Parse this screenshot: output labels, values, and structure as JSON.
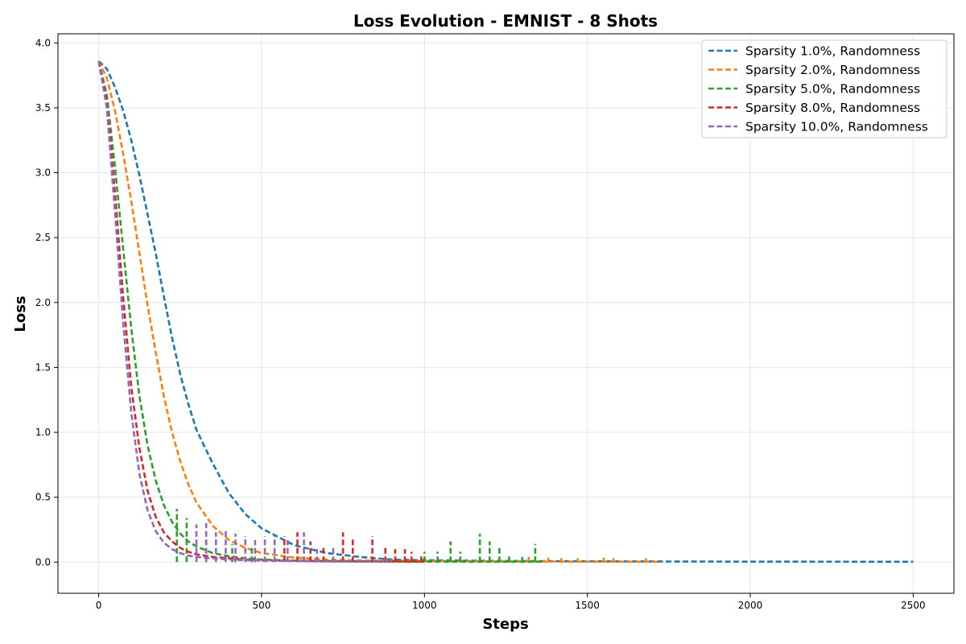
{
  "chart_data": {
    "type": "line",
    "title": "Loss Evolution - EMNIST - 8 Shots",
    "xlabel": "Steps",
    "ylabel": "Loss",
    "xlim": [
      -125,
      2625
    ],
    "ylim": [
      -0.24,
      4.07
    ],
    "xticks": [
      0,
      500,
      1000,
      1500,
      2000,
      2500
    ],
    "yticks": [
      0.0,
      0.5,
      1.0,
      1.5,
      2.0,
      2.5,
      3.0,
      3.5,
      4.0
    ],
    "xtick_labels": [
      "0",
      "500",
      "1000",
      "1500",
      "2000",
      "2500"
    ],
    "ytick_labels": [
      "0.0",
      "0.5",
      "1.0",
      "1.5",
      "2.0",
      "2.5",
      "3.0",
      "3.5",
      "4.0"
    ],
    "grid": true,
    "legend_position": "top-right",
    "series": [
      {
        "name": "Sparsity 1.0%, Randomness",
        "color": "#1f77b4",
        "x": [
          0,
          25,
          50,
          75,
          100,
          125,
          150,
          175,
          200,
          225,
          250,
          275,
          300,
          350,
          400,
          450,
          500,
          600,
          700,
          800,
          900,
          1000,
          1200,
          1500,
          2000,
          2500
        ],
        "y": [
          3.86,
          3.8,
          3.66,
          3.48,
          3.25,
          2.98,
          2.68,
          2.38,
          2.05,
          1.73,
          1.45,
          1.22,
          1.02,
          0.76,
          0.53,
          0.37,
          0.26,
          0.13,
          0.07,
          0.04,
          0.02,
          0.015,
          0.01,
          0.006,
          0.004,
          0.003
        ],
        "spikes": []
      },
      {
        "name": "Sparsity 2.0%, Randomness",
        "color": "#ff7f0e",
        "x": [
          0,
          25,
          50,
          75,
          100,
          125,
          150,
          175,
          200,
          225,
          250,
          275,
          300,
          350,
          400,
          450,
          500,
          600,
          700,
          800,
          1000,
          1200,
          1500,
          1720
        ],
        "y": [
          3.86,
          3.73,
          3.48,
          3.15,
          2.78,
          2.38,
          1.98,
          1.62,
          1.28,
          1.0,
          0.78,
          0.6,
          0.46,
          0.28,
          0.17,
          0.11,
          0.07,
          0.035,
          0.02,
          0.013,
          0.008,
          0.005,
          0.004,
          0.003
        ],
        "spikes": [
          [
            1320,
            0.04
          ],
          [
            1380,
            0.035
          ],
          [
            1420,
            0.03
          ],
          [
            1470,
            0.03
          ],
          [
            1550,
            0.035
          ],
          [
            1580,
            0.03
          ],
          [
            1680,
            0.03
          ]
        ]
      },
      {
        "name": "Sparsity 5.0%, Randomness",
        "color": "#2ca02c",
        "x": [
          0,
          25,
          50,
          75,
          100,
          125,
          150,
          175,
          200,
          225,
          250,
          275,
          300,
          350,
          400,
          450,
          500,
          600,
          700,
          800,
          1000,
          1200,
          1360
        ],
        "y": [
          3.86,
          3.6,
          3.05,
          2.42,
          1.8,
          1.28,
          0.9,
          0.63,
          0.44,
          0.31,
          0.22,
          0.16,
          0.12,
          0.07,
          0.045,
          0.03,
          0.02,
          0.012,
          0.008,
          0.006,
          0.004,
          0.003,
          0.003
        ],
        "spikes": [
          [
            240,
            0.41
          ],
          [
            270,
            0.34
          ],
          [
            330,
            0.2
          ],
          [
            410,
            0.14
          ],
          [
            470,
            0.11
          ],
          [
            1000,
            0.08
          ],
          [
            1040,
            0.08
          ],
          [
            1080,
            0.16
          ],
          [
            1110,
            0.08
          ],
          [
            1170,
            0.22
          ],
          [
            1200,
            0.16
          ],
          [
            1230,
            0.12
          ],
          [
            1260,
            0.06
          ],
          [
            1300,
            0.04
          ],
          [
            1340,
            0.14
          ]
        ]
      },
      {
        "name": "Sparsity 8.0%, Randomness",
        "color": "#d62728",
        "x": [
          0,
          25,
          50,
          75,
          100,
          125,
          150,
          175,
          200,
          225,
          250,
          275,
          300,
          350,
          400,
          450,
          500,
          600,
          700,
          800,
          1000
        ],
        "y": [
          3.86,
          3.55,
          2.85,
          2.05,
          1.35,
          0.88,
          0.55,
          0.35,
          0.23,
          0.16,
          0.11,
          0.08,
          0.06,
          0.04,
          0.03,
          0.02,
          0.015,
          0.01,
          0.007,
          0.005,
          0.004
        ],
        "spikes": [
          [
            570,
            0.2
          ],
          [
            610,
            0.23
          ],
          [
            650,
            0.16
          ],
          [
            690,
            0.11
          ],
          [
            750,
            0.23
          ],
          [
            780,
            0.18
          ],
          [
            840,
            0.2
          ],
          [
            880,
            0.13
          ],
          [
            910,
            0.1
          ],
          [
            940,
            0.1
          ],
          [
            960,
            0.08
          ],
          [
            990,
            0.05
          ]
        ]
      },
      {
        "name": "Sparsity 10.0%, Randomness",
        "color": "#9467bd",
        "x": [
          0,
          25,
          50,
          75,
          100,
          125,
          150,
          175,
          200,
          225,
          250,
          275,
          300,
          350,
          400,
          450,
          500,
          600,
          700,
          800,
          900
        ],
        "y": [
          3.86,
          3.5,
          2.7,
          1.85,
          1.15,
          0.68,
          0.4,
          0.24,
          0.15,
          0.1,
          0.07,
          0.05,
          0.04,
          0.03,
          0.02,
          0.015,
          0.012,
          0.008,
          0.005,
          0.004,
          0.003
        ],
        "spikes": [
          [
            300,
            0.29
          ],
          [
            330,
            0.3
          ],
          [
            360,
            0.23
          ],
          [
            390,
            0.26
          ],
          [
            420,
            0.22
          ],
          [
            450,
            0.2
          ],
          [
            480,
            0.17
          ],
          [
            510,
            0.2
          ],
          [
            540,
            0.2
          ],
          [
            580,
            0.17
          ],
          [
            630,
            0.23
          ],
          [
            670,
            0.1
          ],
          [
            720,
            0.12
          ]
        ]
      }
    ]
  }
}
